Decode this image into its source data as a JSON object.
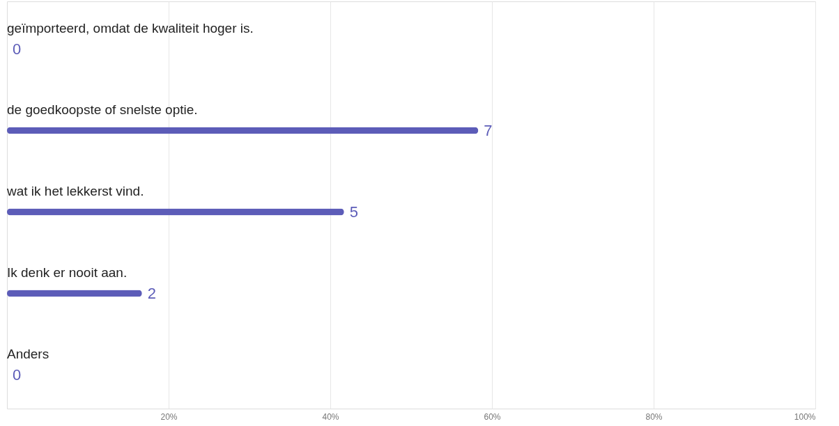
{
  "chart_data": {
    "type": "bar",
    "orientation": "horizontal",
    "categories": [
      "geïmporteerd, omdat de kwaliteit hoger is.",
      "de goedkoopste of snelste optie.",
      "wat ik het lekkerst vind.",
      "Ik denk er nooit aan.",
      "Anders"
    ],
    "values": [
      0,
      58.3,
      41.7,
      16.7,
      0
    ],
    "annotations": [
      "0",
      "7",
      "5",
      "2",
      "0"
    ],
    "color": "#5c5cb8",
    "xlim": [
      0,
      100
    ],
    "xticks": [
      {
        "value": 20,
        "label": "20%"
      },
      {
        "value": 40,
        "label": "40%"
      },
      {
        "value": 60,
        "label": "60%"
      },
      {
        "value": 80,
        "label": "80%"
      },
      {
        "value": 100,
        "label": "100%"
      }
    ],
    "grid": "x",
    "tick_labels": "x",
    "legend": false
  }
}
